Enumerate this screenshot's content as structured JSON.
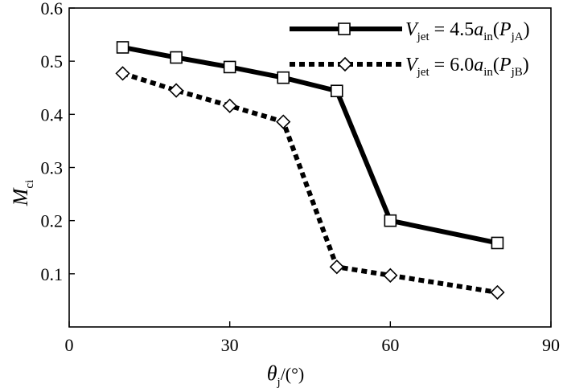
{
  "chart_data": {
    "type": "line",
    "x_axis": {
      "label_main": "θ",
      "label_sub": "j",
      "label_rest": "/(°)",
      "ticks": [
        0,
        30,
        60,
        90
      ],
      "range": [
        0,
        90
      ]
    },
    "y_axis": {
      "label_main": "M",
      "label_sub": "ci",
      "ticks": [
        0.1,
        0.2,
        0.3,
        0.4,
        0.5,
        0.6
      ],
      "range": [
        0,
        0.6
      ]
    },
    "series": [
      {
        "name": "V_jet = 4.5a_in (P_jA)",
        "legend": {
          "v": "V",
          "v_sub": "jet",
          "eq": " = 4.5",
          "a": "a",
          "a_sub": "in",
          "open": "(",
          "p": "P",
          "p_sub": "jA",
          "close": ")"
        },
        "style": "solid",
        "marker": "square",
        "color": "#000000",
        "x": [
          10,
          20,
          30,
          40,
          50,
          60,
          80
        ],
        "y": [
          0.526,
          0.507,
          0.489,
          0.469,
          0.444,
          0.2,
          0.158
        ]
      },
      {
        "name": "V_jet = 6.0a_in (P_jB)",
        "legend": {
          "v": "V",
          "v_sub": "jet",
          "eq": " = 6.0",
          "a": "a",
          "a_sub": "in",
          "open": "(",
          "p": "P",
          "p_sub": "jB",
          "close": ")"
        },
        "style": "dotted",
        "marker": "diamond",
        "color": "#000000",
        "x": [
          10,
          20,
          30,
          40,
          50,
          60,
          80
        ],
        "y": [
          0.477,
          0.445,
          0.416,
          0.386,
          0.113,
          0.097,
          0.065
        ]
      }
    ],
    "legend_position": "top-right",
    "grid": false
  }
}
